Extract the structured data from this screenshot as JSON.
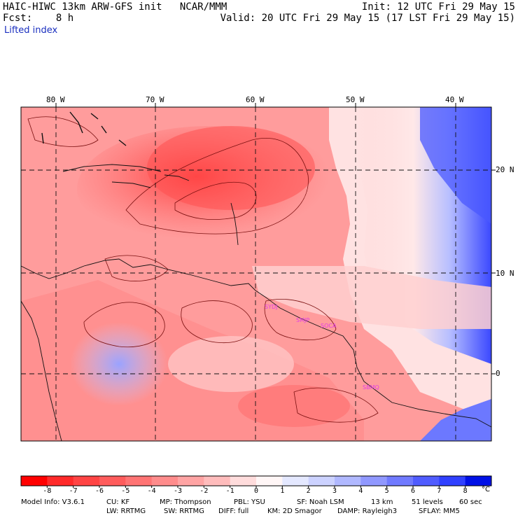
{
  "header": {
    "title": "HAIC-HIWC 13km ARW-GFS init   NCAR/MMM",
    "init": "Init: 12 UTC Fri 29 May 15",
    "fcst": "Fcst:    8 h",
    "valid": "Valid: 20 UTC Fri 29 May 15 (17 LST Fri 29 May 15)",
    "variable": "Lifted index"
  },
  "map": {
    "lon_labels": [
      "80 W",
      "70 W",
      "60 W",
      "50 W",
      "40 W"
    ],
    "lat_labels": [
      "20 N",
      "10 N",
      "0"
    ],
    "stations": [
      "SYDJ",
      "SMJP",
      "SOCA",
      "SBMQ"
    ]
  },
  "colorbar": {
    "labels": [
      "-8",
      "-7",
      "-6",
      "-5",
      "-4",
      "-3",
      "-2",
      "-1",
      "0",
      "1",
      "2",
      "3",
      "4",
      "5",
      "6",
      "7",
      "8"
    ],
    "unit": "°C",
    "colors": [
      "#ff0000",
      "#ff2a2a",
      "#ff4444",
      "#ff5c5c",
      "#ff7474",
      "#ff8c8c",
      "#ffa4a4",
      "#ffbcbc",
      "#ffdcdc",
      "#fff6f6",
      "#e4e8ff",
      "#ccd2ff",
      "#b0b8ff",
      "#9098ff",
      "#707aff",
      "#505cff",
      "#3040ff",
      "#0010e6"
    ]
  },
  "footer": {
    "model": "Model Info: V3.6.1",
    "cu": "CU: KF",
    "mp": "MP: Thompson",
    "pbl": "PBL: YSU",
    "sf": "SF: Noah LSM",
    "res": "13 km",
    "levels": "51 levels",
    "dt": "60 sec",
    "lw": "LW: RRTMG",
    "sw": "SW: RRTMG",
    "diff": "DIFF: full",
    "km": "KM: 2D Smagor",
    "damp": "DAMP: Rayleigh3",
    "sflay": "SFLAY: MM5"
  }
}
